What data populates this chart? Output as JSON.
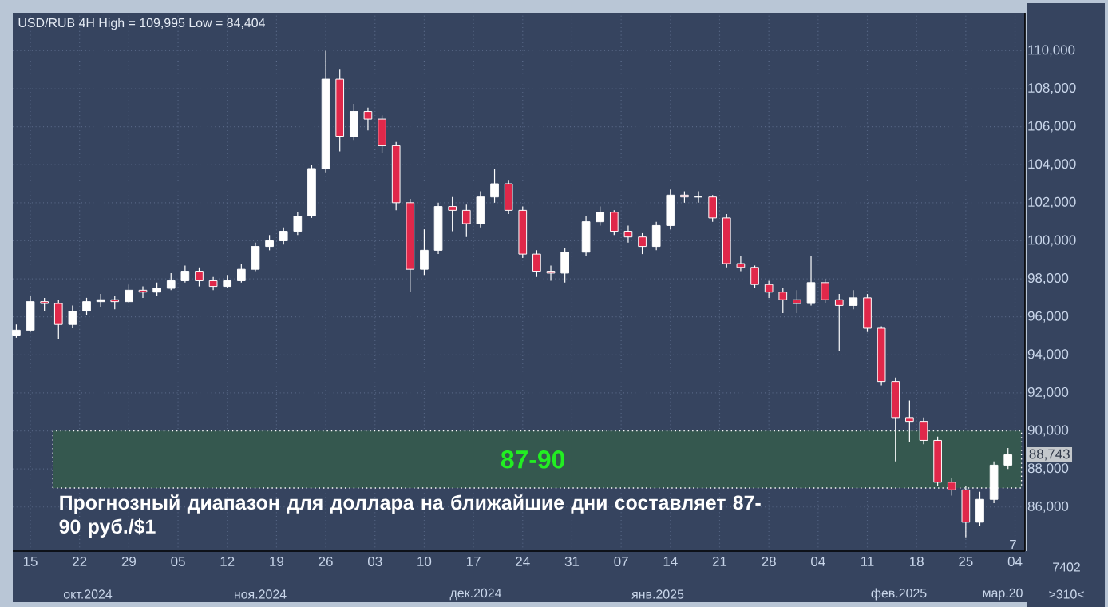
{
  "chart_data": {
    "type": "candlestick",
    "title": "USD/RUB 4H High = 109,995 Low = 84,404",
    "x": [
      "2024-10-13",
      "2024-10-15",
      "2024-10-17",
      "2024-10-19",
      "2024-10-21",
      "2024-10-23",
      "2024-10-25",
      "2024-10-27",
      "2024-10-29",
      "2024-10-31",
      "2024-11-02",
      "2024-11-04",
      "2024-11-06",
      "2024-11-08",
      "2024-11-10",
      "2024-11-12",
      "2024-11-14",
      "2024-11-16",
      "2024-11-18",
      "2024-11-20",
      "2024-11-22",
      "2024-11-24",
      "2024-11-26",
      "2024-11-28",
      "2024-11-30",
      "2024-12-02",
      "2024-12-04",
      "2024-12-06",
      "2024-12-08",
      "2024-12-10",
      "2024-12-12",
      "2024-12-14",
      "2024-12-16",
      "2024-12-18",
      "2024-12-20",
      "2024-12-22",
      "2024-12-24",
      "2024-12-26",
      "2024-12-28",
      "2024-12-30",
      "2025-01-02",
      "2025-01-04",
      "2025-01-06",
      "2025-01-08",
      "2025-01-10",
      "2025-01-12",
      "2025-01-14",
      "2025-01-16",
      "2025-01-18",
      "2025-01-20",
      "2025-01-22",
      "2025-01-24",
      "2025-01-26",
      "2025-01-28",
      "2025-01-30",
      "2025-02-01",
      "2025-02-03",
      "2025-02-05",
      "2025-02-07",
      "2025-02-09",
      "2025-02-11",
      "2025-02-13",
      "2025-02-15",
      "2025-02-17",
      "2025-02-19",
      "2025-02-21",
      "2025-02-23",
      "2025-02-25",
      "2025-02-27",
      "2025-03-01",
      "2025-03-03"
    ],
    "ohlc": [
      [
        95000,
        95600,
        94900,
        95300
      ],
      [
        95300,
        97100,
        95200,
        96800
      ],
      [
        96800,
        97000,
        96300,
        96700
      ],
      [
        96700,
        96900,
        94850,
        95600
      ],
      [
        95600,
        96600,
        95400,
        96300
      ],
      [
        96300,
        97000,
        96100,
        96800
      ],
      [
        96800,
        97200,
        96500,
        96900
      ],
      [
        96900,
        97100,
        96400,
        96800
      ],
      [
        96800,
        97700,
        96700,
        97400
      ],
      [
        97400,
        97600,
        97000,
        97300
      ],
      [
        97300,
        97800,
        97100,
        97500
      ],
      [
        97500,
        98300,
        97400,
        97900
      ],
      [
        97900,
        98700,
        97800,
        98400
      ],
      [
        98400,
        98600,
        97600,
        97900
      ],
      [
        97900,
        98100,
        97400,
        97600
      ],
      [
        97600,
        98200,
        97500,
        97900
      ],
      [
        97900,
        98800,
        97800,
        98500
      ],
      [
        98500,
        99900,
        98400,
        99700
      ],
      [
        99700,
        100300,
        99500,
        100000
      ],
      [
        100000,
        100700,
        99800,
        100500
      ],
      [
        100500,
        101500,
        100300,
        101300
      ],
      [
        101300,
        104000,
        101200,
        103800
      ],
      [
        103800,
        109995,
        103600,
        108500
      ],
      [
        108500,
        109000,
        104700,
        105500
      ],
      [
        105500,
        107200,
        105300,
        106800
      ],
      [
        106800,
        107000,
        105800,
        106400
      ],
      [
        106400,
        106600,
        104600,
        105000
      ],
      [
        105000,
        105200,
        101600,
        102000
      ],
      [
        102000,
        102200,
        97300,
        98500
      ],
      [
        98500,
        100600,
        98200,
        99500
      ],
      [
        99500,
        102000,
        99300,
        101800
      ],
      [
        101800,
        102300,
        100500,
        101600
      ],
      [
        101600,
        101900,
        100200,
        100900
      ],
      [
        100900,
        102600,
        100700,
        102300
      ],
      [
        102300,
        103800,
        102000,
        103000
      ],
      [
        103000,
        103200,
        101400,
        101600
      ],
      [
        101600,
        101800,
        99100,
        99300
      ],
      [
        99300,
        99500,
        98100,
        98400
      ],
      [
        98400,
        98700,
        97900,
        98300
      ],
      [
        98300,
        99600,
        97800,
        99400
      ],
      [
        99400,
        101300,
        99200,
        101000
      ],
      [
        101000,
        101800,
        100800,
        101500
      ],
      [
        101500,
        101600,
        100300,
        100500
      ],
      [
        100500,
        100800,
        99900,
        100200
      ],
      [
        100200,
        100400,
        99300,
        99700
      ],
      [
        99700,
        101000,
        99500,
        100800
      ],
      [
        100800,
        102700,
        100600,
        102400
      ],
      [
        102400,
        102600,
        102000,
        102300
      ],
      [
        102300,
        102600,
        102000,
        102300
      ],
      [
        102300,
        102400,
        101000,
        101200
      ],
      [
        101200,
        101400,
        98600,
        98800
      ],
      [
        98800,
        99200,
        98400,
        98600
      ],
      [
        98600,
        98700,
        97500,
        97700
      ],
      [
        97700,
        97900,
        97000,
        97300
      ],
      [
        97300,
        97500,
        96200,
        96900
      ],
      [
        96900,
        97400,
        96200,
        96700
      ],
      [
        96700,
        99200,
        96600,
        97800
      ],
      [
        97800,
        98000,
        96700,
        96900
      ],
      [
        96900,
        97200,
        94200,
        96600
      ],
      [
        96600,
        97400,
        96400,
        97000
      ],
      [
        97000,
        97200,
        95200,
        95400
      ],
      [
        95400,
        95500,
        92400,
        92600
      ],
      [
        92600,
        92800,
        88400,
        90700
      ],
      [
        90700,
        91600,
        89400,
        90500
      ],
      [
        90500,
        90700,
        89300,
        89500
      ],
      [
        89500,
        89700,
        87100,
        87300
      ],
      [
        87300,
        87500,
        86600,
        86900
      ],
      [
        86900,
        87100,
        84404,
        85200
      ],
      [
        85200,
        86800,
        85000,
        86400
      ],
      [
        86400,
        88400,
        86200,
        88200
      ],
      [
        88200,
        89100,
        88000,
        88743
      ]
    ],
    "xlim": [
      "2024-10-12T12:00",
      "2025-03-05T10:00"
    ],
    "xticks": [
      {
        "value": "2024-10-15",
        "label": "15"
      },
      {
        "value": "2024-10-22",
        "label": "22"
      },
      {
        "value": "2024-10-29",
        "label": "29"
      },
      {
        "value": "2024-11-05",
        "label": "05"
      },
      {
        "value": "2024-11-12",
        "label": "12"
      },
      {
        "value": "2024-11-19",
        "label": "19"
      },
      {
        "value": "2024-11-26",
        "label": "26"
      },
      {
        "value": "2024-12-03",
        "label": "03"
      },
      {
        "value": "2024-12-10",
        "label": "10"
      },
      {
        "value": "2024-12-17",
        "label": "17"
      },
      {
        "value": "2024-12-24",
        "label": "24"
      },
      {
        "value": "2024-12-31",
        "label": "31"
      },
      {
        "value": "2025-01-07",
        "label": "07"
      },
      {
        "value": "2025-01-14",
        "label": "14"
      },
      {
        "value": "2025-01-21",
        "label": "21"
      },
      {
        "value": "2025-01-28",
        "label": "28"
      },
      {
        "value": "2025-02-04",
        "label": "04"
      },
      {
        "value": "2025-02-11",
        "label": "11"
      },
      {
        "value": "2025-02-18",
        "label": "18"
      },
      {
        "value": "2025-02-25",
        "label": "25"
      },
      {
        "value": "2025-03-04",
        "label": "04"
      }
    ],
    "ylim": [
      83680,
      111990
    ],
    "yticks": [
      {
        "value": 86000,
        "label": "86,000"
      },
      {
        "value": 88000,
        "label": "88,000"
      },
      {
        "value": 90000,
        "label": "90,000"
      },
      {
        "value": 92000,
        "label": "92,000"
      },
      {
        "value": 94000,
        "label": "94,000"
      },
      {
        "value": 96000,
        "label": "96,000"
      },
      {
        "value": 98000,
        "label": "98,000"
      },
      {
        "value": 100000,
        "label": "100,000"
      },
      {
        "value": 102000,
        "label": "102,000"
      },
      {
        "value": 104000,
        "label": "104,000"
      },
      {
        "value": 106000,
        "label": "106,000"
      },
      {
        "value": 108000,
        "label": "108,000"
      },
      {
        "value": 110000,
        "label": "110,000"
      }
    ],
    "bands": [
      {
        "axis": "y",
        "from": 87000,
        "to": 90000,
        "label": "87-90",
        "color": "#35584f"
      }
    ],
    "annotations": [
      "Прогнозный диапазон для доллара на ближайшие дни составляет 87-90 руб./$1",
      {
        "text": "88,743",
        "x": "2025-03-03",
        "y": 88743
      },
      "окт.2024",
      "ноя.2024",
      "дек.2024",
      "янв.2025",
      "фев.2025",
      "мар.20",
      "7",
      "7402",
      ">310<"
    ],
    "grid": true
  }
}
